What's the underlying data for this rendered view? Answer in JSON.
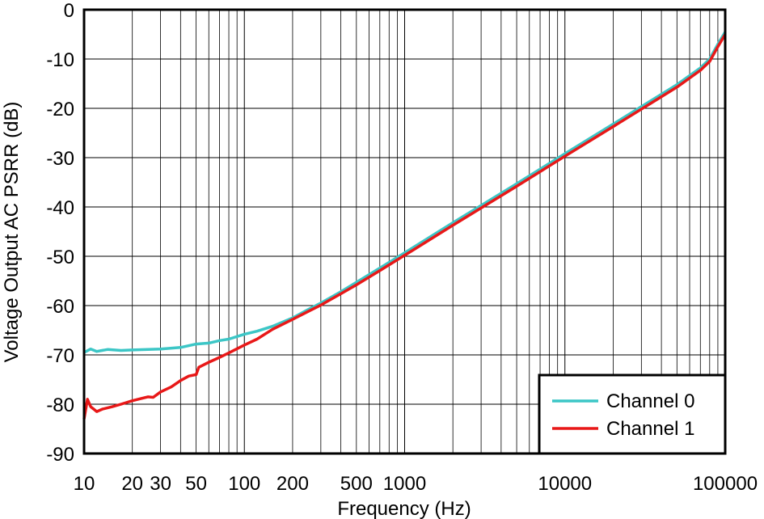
{
  "chart_data": {
    "type": "line",
    "xlabel": "Frequency (Hz)",
    "ylabel": "Voltage Output AC PSRR (dB)",
    "x_scale": "log",
    "xlim": [
      10,
      100000
    ],
    "ylim": [
      -90,
      0
    ],
    "grid": true,
    "legend_position": "bottom-right",
    "x_ticks": [
      {
        "value": 10,
        "label": "10"
      },
      {
        "value": 20,
        "label": "20"
      },
      {
        "value": 30,
        "label": "30"
      },
      {
        "value": 50,
        "label": "50"
      },
      {
        "value": 100,
        "label": "100"
      },
      {
        "value": 200,
        "label": "200"
      },
      {
        "value": 500,
        "label": "500"
      },
      {
        "value": 1000,
        "label": "1000"
      },
      {
        "value": 10000,
        "label": "10000"
      },
      {
        "value": 100000,
        "label": "100000"
      }
    ],
    "y_ticks": [
      0,
      -10,
      -20,
      -30,
      -40,
      -50,
      -60,
      -70,
      -80,
      -90
    ],
    "series": [
      {
        "name": "Channel 0",
        "color": "#3cc6c6",
        "points": [
          [
            10,
            -69.5
          ],
          [
            11,
            -68.8
          ],
          [
            12,
            -69.3
          ],
          [
            14,
            -68.9
          ],
          [
            17,
            -69.1
          ],
          [
            20,
            -69
          ],
          [
            25,
            -68.9
          ],
          [
            30,
            -68.8
          ],
          [
            40,
            -68.5
          ],
          [
            50,
            -67.8
          ],
          [
            60,
            -67.6
          ],
          [
            70,
            -67.1
          ],
          [
            80,
            -66.8
          ],
          [
            100,
            -65.8
          ],
          [
            120,
            -65.2
          ],
          [
            150,
            -64.2
          ],
          [
            200,
            -62.5
          ],
          [
            250,
            -60.8
          ],
          [
            300,
            -59.5
          ],
          [
            400,
            -57.2
          ],
          [
            500,
            -55.3
          ],
          [
            700,
            -52.4
          ],
          [
            1000,
            -49.3
          ],
          [
            2000,
            -43.2
          ],
          [
            5000,
            -35.3
          ],
          [
            10000,
            -29.2
          ],
          [
            20000,
            -23.2
          ],
          [
            50000,
            -15.2
          ],
          [
            70000,
            -11.8
          ],
          [
            80000,
            -10
          ],
          [
            90000,
            -7
          ],
          [
            100000,
            -4.5
          ]
        ]
      },
      {
        "name": "Channel 1",
        "color": "#e81818",
        "points": [
          [
            10,
            -83
          ],
          [
            10.5,
            -79
          ],
          [
            11,
            -80.5
          ],
          [
            12,
            -81.5
          ],
          [
            13,
            -81
          ],
          [
            15,
            -80.5
          ],
          [
            17,
            -80
          ],
          [
            20,
            -79.3
          ],
          [
            23,
            -78.8
          ],
          [
            25,
            -78.5
          ],
          [
            27,
            -78.6
          ],
          [
            30,
            -77.5
          ],
          [
            35,
            -76.5
          ],
          [
            40,
            -75.2
          ],
          [
            45,
            -74.3
          ],
          [
            50,
            -74
          ],
          [
            52,
            -72.5
          ],
          [
            60,
            -71.5
          ],
          [
            70,
            -70.5
          ],
          [
            80,
            -69.6
          ],
          [
            100,
            -68
          ],
          [
            120,
            -66.8
          ],
          [
            150,
            -64.8
          ],
          [
            200,
            -62.8
          ],
          [
            250,
            -61.2
          ],
          [
            300,
            -59.9
          ],
          [
            400,
            -57.6
          ],
          [
            500,
            -55.8
          ],
          [
            700,
            -52.9
          ],
          [
            1000,
            -49.8
          ],
          [
            2000,
            -43.7
          ],
          [
            5000,
            -35.8
          ],
          [
            10000,
            -29.7
          ],
          [
            20000,
            -23.7
          ],
          [
            50000,
            -15.7
          ],
          [
            70000,
            -12.3
          ],
          [
            80000,
            -10.5
          ],
          [
            90000,
            -7.5
          ],
          [
            100000,
            -5
          ]
        ]
      }
    ]
  }
}
